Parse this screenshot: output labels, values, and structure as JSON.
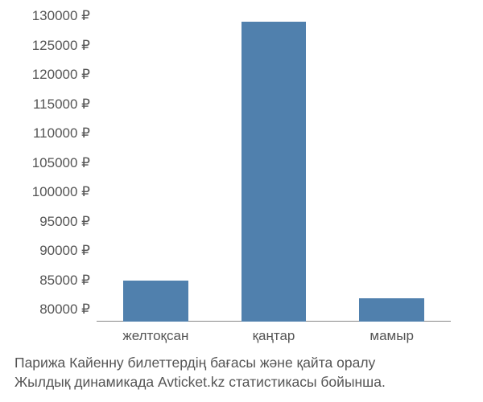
{
  "chart": {
    "type": "bar",
    "background_color": "#ffffff",
    "bar_color": "#5080ad",
    "axis_color": "#888888",
    "text_color": "#555555",
    "font_family": "Arial",
    "label_fontsize": 17,
    "caption_fontsize": 17.5,
    "y_axis": {
      "min": 78000,
      "max": 130000,
      "ticks": [
        80000,
        85000,
        90000,
        95000,
        100000,
        105000,
        110000,
        115000,
        120000,
        125000,
        130000
      ],
      "tick_labels": [
        "80000 ₽",
        "85000 ₽",
        "90000 ₽",
        "95000 ₽",
        "100000 ₽",
        "105000 ₽",
        "110000 ₽",
        "115000 ₽",
        "120000 ₽",
        "125000 ₽",
        "130000 ₽"
      ]
    },
    "categories": [
      "желтоқсан",
      "қаңтар",
      "мамыр"
    ],
    "values": [
      85000,
      129000,
      82000
    ],
    "bar_width_ratio": 0.55,
    "caption_line1": "Парижа Кайенну билеттердің бағасы және қайта оралу",
    "caption_line2": "Жылдық динамикада Avticket.kz статистикасы бойынша."
  }
}
